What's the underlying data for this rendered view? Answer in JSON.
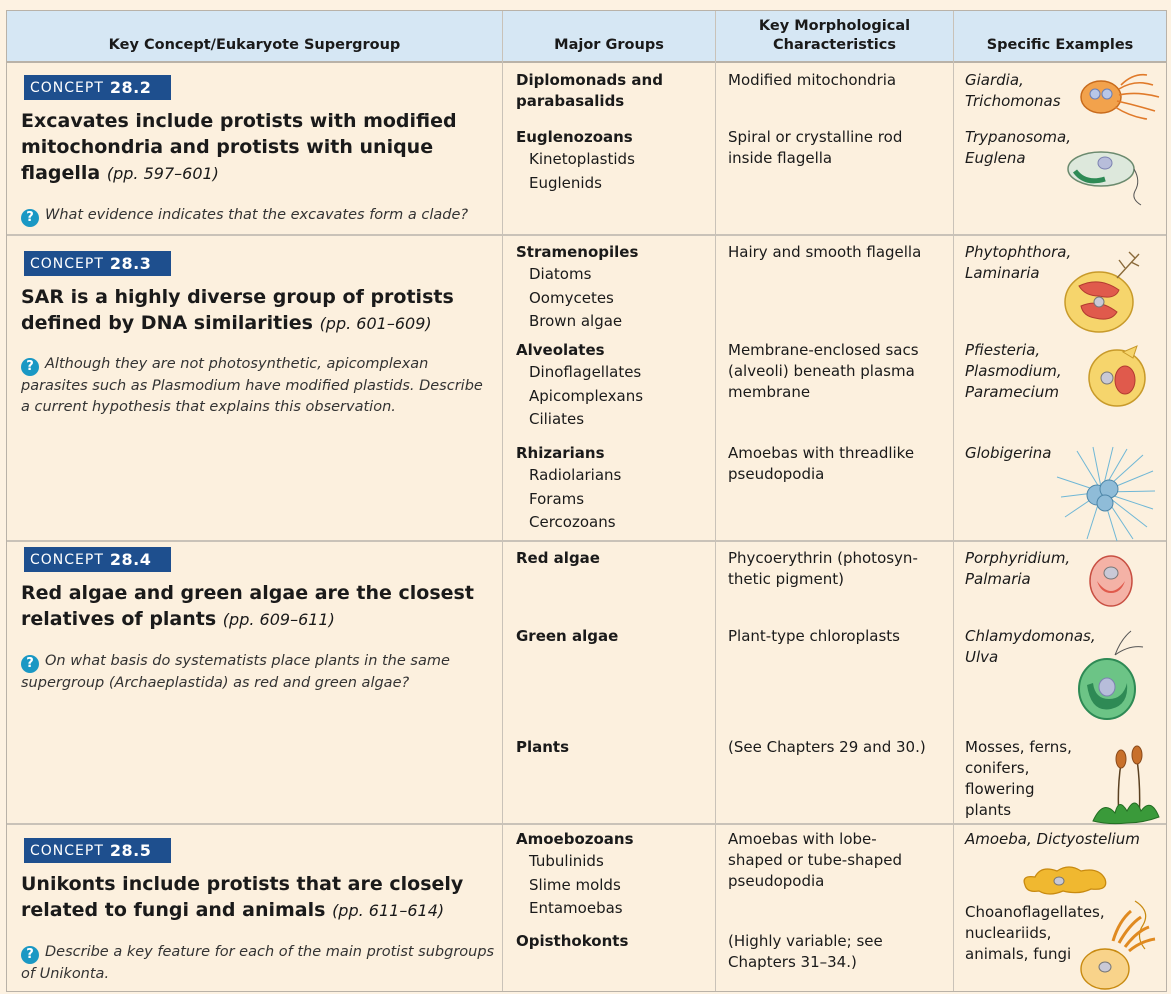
{
  "headers": {
    "col1": "Key Concept/Eukaryote Supergroup",
    "col2": "Major Groups",
    "col3": "Key Morphological Characteristics",
    "col4": "Specific Examples"
  },
  "concepts": [
    {
      "badge": "CONCEPT",
      "number": "28.2",
      "title": "Excavates include protists with modified mitochondria and protists with unique flagella",
      "pages": "(pp. 597–601)",
      "question": "What evidence indicates that the excavates form a clade?",
      "groups": [
        {
          "name": "Diplomonads and parabasalids",
          "subgroups": [],
          "characteristic": "Modified mitochondria",
          "examples": "Giardia, Trichomonas"
        },
        {
          "name": "Euglenozoans",
          "subgroups": [
            "Kinetoplastids",
            "Euglenids"
          ],
          "characteristic": "Spiral or crystalline rod inside flagella",
          "examples": "Trypanosoma, Euglena"
        }
      ]
    },
    {
      "badge": "CONCEPT",
      "number": "28.3",
      "title": "SAR is a highly diverse group of protists defined by DNA similarities",
      "pages": "(pp. 601–609)",
      "question": "Although they are not photosynthetic, apicomplexan parasites such as Plasmodium have modified plastids. Describe a current hypothesis that explains this observation.",
      "groups": [
        {
          "name": "Stramenopiles",
          "subgroups": [
            "Diatoms",
            "Oomycetes",
            "Brown algae"
          ],
          "characteristic": "Hairy and smooth flagella",
          "examples": "Phytophthora, Laminaria"
        },
        {
          "name": "Alveolates",
          "subgroups": [
            "Dinoflagellates",
            "Apicomplexans",
            "Ciliates"
          ],
          "characteristic": "Membrane-enclosed sacs (alveoli) beneath plasma membrane",
          "examples": "Pfiesteria, Plasmodium, Paramecium"
        },
        {
          "name": "Rhizarians",
          "subgroups": [
            "Radiolarians",
            "Forams",
            "Cercozoans"
          ],
          "characteristic": "Amoebas with threadlike pseudopodia",
          "examples": "Globigerina"
        }
      ]
    },
    {
      "badge": "CONCEPT",
      "number": "28.4",
      "title": "Red algae and green algae are the closest relatives of plants",
      "pages": "(pp. 609–611)",
      "question": "On what basis do systematists place plants in the same supergroup (Archaeplastida) as red and green algae?",
      "groups": [
        {
          "name": "Red algae",
          "subgroups": [],
          "characteristic": "Phycoerythrin (photosyn-thetic pigment)",
          "examples": "Porphyridium, Palmaria"
        },
        {
          "name": "Green algae",
          "subgroups": [],
          "characteristic": "Plant-type chloroplasts",
          "examples": "Chlamydomonas, Ulva"
        },
        {
          "name": "Plants",
          "subgroups": [],
          "characteristic": "(See Chapters 29 and 30.)",
          "examples": "Mosses, ferns, conifers, flowering plants"
        }
      ]
    },
    {
      "badge": "CONCEPT",
      "number": "28.5",
      "title": "Unikonts include protists that are closely related to fungi and animals",
      "pages": "(pp. 611–614)",
      "question": "Describe a key feature for each of the main protist subgroups of Unikonta.",
      "groups": [
        {
          "name": "Amoebozoans",
          "subgroups": [
            "Tubulinids",
            "Slime molds",
            "Entamoebas"
          ],
          "characteristic": "Amoebas with lobe-shaped or tube-shaped pseudopodia",
          "examples": "Amoeba, Dictyostelium"
        },
        {
          "name": "Opisthokonts",
          "subgroups": [],
          "characteristic": "(Highly variable; see Chapters 31–34.)",
          "examples": "Choanoflagellates, nucleariids, animals, fungi"
        }
      ]
    }
  ],
  "colors": {
    "header_bg": "#d6e7f4",
    "badge_bg": "#1e4f8e",
    "question_icon": "#1a98c4",
    "page_bg": "#fcf0de"
  }
}
